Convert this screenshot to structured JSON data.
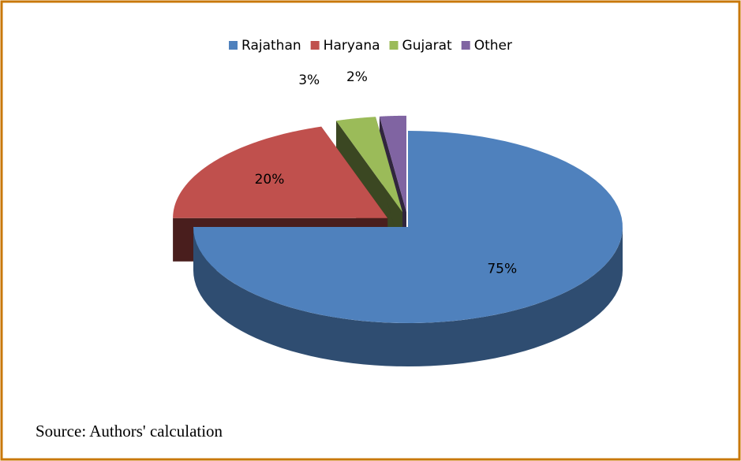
{
  "chart_data": {
    "type": "pie3d",
    "categories": [
      "Rajathan",
      "Haryana",
      "Gujarat",
      "Other"
    ],
    "values": [
      75,
      20,
      3,
      2
    ],
    "value_labels": [
      "75%",
      "20%",
      "3%",
      "2%"
    ],
    "colors": [
      "#4f81bd",
      "#c0504d",
      "#9bbb59",
      "#8064a2"
    ],
    "legend": "top",
    "source": "Source: Authors' calculation"
  }
}
